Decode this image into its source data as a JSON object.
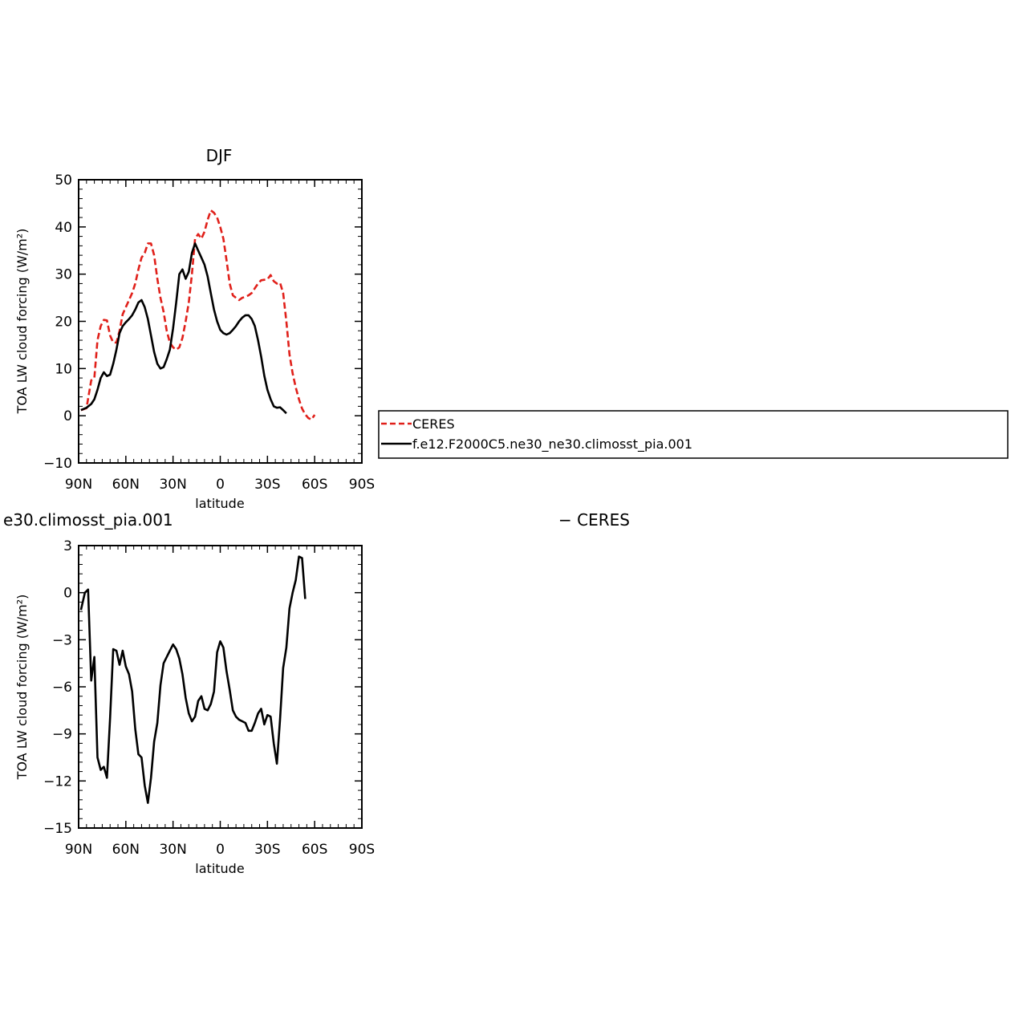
{
  "colors": {
    "ceres": "#e0201a",
    "model": "#000000"
  },
  "chart_data": [
    {
      "type": "line",
      "title": "DJF",
      "xlabel": "latitude",
      "ylabel": "TOA LW cloud forcing (W/m²)",
      "xlim": [
        90,
        -90
      ],
      "ylim": [
        -10,
        50
      ],
      "x_ticks": [
        90,
        60,
        30,
        0,
        -30,
        -60,
        -90
      ],
      "x_tick_labels": [
        "90N",
        "60N",
        "30N",
        "0",
        "30S",
        "60S",
        "90S"
      ],
      "y_ticks": [
        -10,
        0,
        10,
        20,
        30,
        40,
        50
      ],
      "y_tick_labels": [
        "−10",
        "0",
        "10",
        "20",
        "30",
        "40",
        "50"
      ],
      "legend_position": "right",
      "series": [
        {
          "name": "CERES",
          "color": "#e0201a",
          "dash": "dashed",
          "points": [
            [
              88.5,
              1.2
            ],
            [
              85,
              1.6
            ],
            [
              82,
              7.5
            ],
            [
              80,
              8
            ],
            [
              78,
              16
            ],
            [
              76,
              19
            ],
            [
              74,
              20.3
            ],
            [
              72,
              20.2
            ],
            [
              70,
              17
            ],
            [
              68,
              15.5
            ],
            [
              66,
              15.5
            ],
            [
              64,
              18
            ],
            [
              62,
              21.5
            ],
            [
              60,
              23
            ],
            [
              58,
              24.5
            ],
            [
              56,
              26
            ],
            [
              54,
              28
            ],
            [
              52,
              31
            ],
            [
              50,
              33.5
            ],
            [
              48,
              34.5
            ],
            [
              46,
              36.5
            ],
            [
              44,
              36.5
            ],
            [
              42,
              34
            ],
            [
              40,
              29
            ],
            [
              38,
              25
            ],
            [
              36,
              22
            ],
            [
              34,
              18
            ],
            [
              32,
              15.5
            ],
            [
              30,
              14.5
            ],
            [
              28,
              14
            ],
            [
              26,
              14.5
            ],
            [
              24,
              16.5
            ],
            [
              22,
              20
            ],
            [
              20,
              24
            ],
            [
              18,
              30
            ],
            [
              16,
              37.5
            ],
            [
              14,
              38.5
            ],
            [
              12,
              37.5
            ],
            [
              10,
              39
            ],
            [
              8,
              41.5
            ],
            [
              6,
              43.5
            ],
            [
              4,
              43
            ],
            [
              2,
              42
            ],
            [
              0,
              40
            ],
            [
              -2,
              37.5
            ],
            [
              -4,
              33
            ],
            [
              -6,
              28
            ],
            [
              -8,
              25.5
            ],
            [
              -10,
              25
            ],
            [
              -12,
              24.5
            ],
            [
              -14,
              25
            ],
            [
              -16,
              25.2
            ],
            [
              -18,
              25.5
            ],
            [
              -20,
              26
            ],
            [
              -22,
              27
            ],
            [
              -24,
              28
            ],
            [
              -26,
              28.7
            ],
            [
              -28,
              28.8
            ],
            [
              -30,
              28.9
            ],
            [
              -32,
              29.8
            ],
            [
              -34,
              28.5
            ],
            [
              -36,
              28
            ],
            [
              -38,
              28.2
            ],
            [
              -40,
              26
            ],
            [
              -42,
              20
            ],
            [
              -44,
              13
            ],
            [
              -46,
              9
            ],
            [
              -48,
              6
            ],
            [
              -50,
              3.5
            ],
            [
              -52,
              1.5
            ],
            [
              -54,
              0.3
            ],
            [
              -56,
              -0.5
            ],
            [
              -58,
              -0.8
            ],
            [
              -60,
              0.2
            ]
          ]
        },
        {
          "name": "f.e12.F2000C5.ne30_ne30.climosst_pia.001",
          "color": "#000000",
          "dash": "solid",
          "points": [
            [
              88.5,
              1.2
            ],
            [
              85,
              1.7
            ],
            [
              82,
              2.5
            ],
            [
              80,
              3.5
            ],
            [
              78,
              5.5
            ],
            [
              76,
              8
            ],
            [
              74,
              9.2
            ],
            [
              72,
              8.4
            ],
            [
              70,
              8.7
            ],
            [
              68,
              11
            ],
            [
              66,
              14
            ],
            [
              64,
              17.5
            ],
            [
              62,
              19
            ],
            [
              60,
              19.8
            ],
            [
              58,
              20.5
            ],
            [
              56,
              21.3
            ],
            [
              54,
              22.5
            ],
            [
              52,
              24
            ],
            [
              50,
              24.5
            ],
            [
              48,
              23
            ],
            [
              46,
              20.5
            ],
            [
              44,
              17
            ],
            [
              42,
              13.5
            ],
            [
              40,
              11
            ],
            [
              38,
              10
            ],
            [
              36,
              10.3
            ],
            [
              34,
              12
            ],
            [
              32,
              14
            ],
            [
              30,
              18.5
            ],
            [
              28,
              24
            ],
            [
              26,
              30
            ],
            [
              24,
              31
            ],
            [
              22,
              29
            ],
            [
              20,
              30.5
            ],
            [
              18,
              34.5
            ],
            [
              16,
              36.5
            ],
            [
              14,
              35
            ],
            [
              12,
              33.5
            ],
            [
              10,
              32
            ],
            [
              8,
              29.5
            ],
            [
              6,
              26
            ],
            [
              4,
              22.5
            ],
            [
              2,
              20
            ],
            [
              0,
              18.2
            ],
            [
              -2,
              17.5
            ],
            [
              -4,
              17.2
            ],
            [
              -6,
              17.5
            ],
            [
              -8,
              18.2
            ],
            [
              -10,
              19
            ],
            [
              -12,
              20
            ],
            [
              -14,
              20.8
            ],
            [
              -16,
              21.3
            ],
            [
              -18,
              21.3
            ],
            [
              -20,
              20.5
            ],
            [
              -22,
              19
            ],
            [
              -24,
              16
            ],
            [
              -26,
              12.5
            ],
            [
              -28,
              8.5
            ],
            [
              -30,
              5.5
            ],
            [
              -32,
              3.5
            ],
            [
              -34,
              2
            ],
            [
              -36,
              1.7
            ],
            [
              -38,
              1.8
            ],
            [
              -40,
              1.2
            ],
            [
              -42,
              0.5
            ]
          ]
        }
      ]
    },
    {
      "type": "line",
      "title": "e30.climosst_pia.001",
      "title_right": "− CERES",
      "xlabel": "latitude",
      "ylabel": "TOA LW cloud forcing (W/m²)",
      "xlim": [
        90,
        -90
      ],
      "ylim": [
        -15,
        3
      ],
      "x_ticks": [
        90,
        60,
        30,
        0,
        -30,
        -60,
        -90
      ],
      "x_tick_labels": [
        "90N",
        "60N",
        "30N",
        "0",
        "30S",
        "60S",
        "90S"
      ],
      "y_ticks": [
        -15,
        -12,
        -9,
        -6,
        -3,
        0,
        3
      ],
      "y_tick_labels": [
        "−15",
        "−12",
        "−9",
        "−6",
        "−3",
        "0",
        "3"
      ],
      "series": [
        {
          "color": "#000000",
          "dash": "solid",
          "points": [
            [
              88.5,
              -1.1
            ],
            [
              86,
              0
            ],
            [
              84,
              0.2
            ],
            [
              82,
              -5.6
            ],
            [
              80,
              -4.1
            ],
            [
              78,
              -10.5
            ],
            [
              76,
              -11.3
            ],
            [
              74,
              -11.1
            ],
            [
              72,
              -11.8
            ],
            [
              70,
              -8
            ],
            [
              68,
              -3.6
            ],
            [
              66,
              -3.7
            ],
            [
              64,
              -4.6
            ],
            [
              62,
              -3.7
            ],
            [
              60,
              -4.7
            ],
            [
              58,
              -5.2
            ],
            [
              56,
              -6.3
            ],
            [
              54,
              -8.7
            ],
            [
              52,
              -10.3
            ],
            [
              50,
              -10.5
            ],
            [
              48,
              -12.3
            ],
            [
              46,
              -13.4
            ],
            [
              44,
              -11.8
            ],
            [
              42,
              -9.5
            ],
            [
              40,
              -8.3
            ],
            [
              38,
              -5.9
            ],
            [
              36,
              -4.5
            ],
            [
              34,
              -4.1
            ],
            [
              32,
              -3.7
            ],
            [
              30,
              -3.3
            ],
            [
              28,
              -3.6
            ],
            [
              26,
              -4.2
            ],
            [
              24,
              -5.2
            ],
            [
              22,
              -6.7
            ],
            [
              20,
              -7.7
            ],
            [
              18,
              -8.2
            ],
            [
              16,
              -7.9
            ],
            [
              14,
              -6.9
            ],
            [
              12,
              -6.6
            ],
            [
              10,
              -7.4
            ],
            [
              8,
              -7.5
            ],
            [
              6,
              -7.1
            ],
            [
              4,
              -6.3
            ],
            [
              2,
              -3.8
            ],
            [
              0,
              -3.1
            ],
            [
              -2,
              -3.5
            ],
            [
              -4,
              -5
            ],
            [
              -6,
              -6.2
            ],
            [
              -8,
              -7.5
            ],
            [
              -10,
              -7.9
            ],
            [
              -12,
              -8.1
            ],
            [
              -14,
              -8.2
            ],
            [
              -16,
              -8.3
            ],
            [
              -18,
              -8.8
            ],
            [
              -20,
              -8.8
            ],
            [
              -22,
              -8.3
            ],
            [
              -24,
              -7.7
            ],
            [
              -26,
              -7.4
            ],
            [
              -28,
              -8.4
            ],
            [
              -30,
              -7.8
            ],
            [
              -32,
              -7.9
            ],
            [
              -34,
              -9.6
            ],
            [
              -36,
              -10.9
            ],
            [
              -38,
              -8.1
            ],
            [
              -40,
              -4.8
            ],
            [
              -42,
              -3.5
            ],
            [
              -44,
              -1
            ],
            [
              -46,
              0
            ],
            [
              -48,
              0.8
            ],
            [
              -50,
              2.3
            ],
            [
              -52,
              2.2
            ],
            [
              -54,
              -0.4
            ]
          ]
        }
      ]
    }
  ]
}
